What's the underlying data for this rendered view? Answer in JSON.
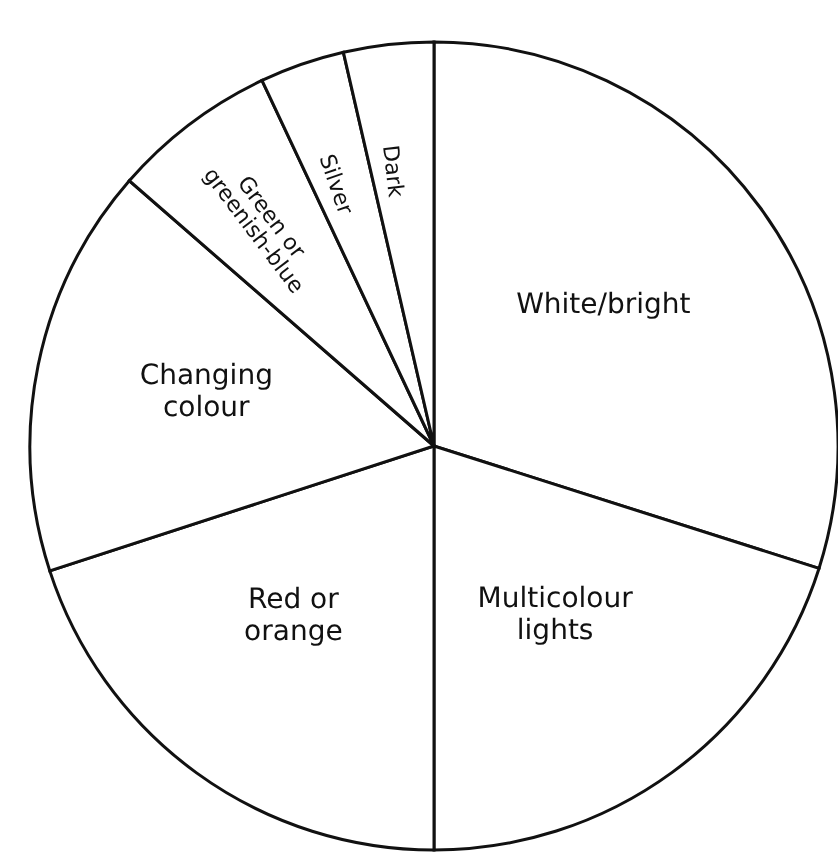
{
  "chart_data": {
    "type": "pie",
    "categories": [
      "White/bright",
      "Multicolour lights",
      "Red or orange",
      "Changing colour",
      "Green or greenish-blue",
      "Silver",
      "Dark"
    ],
    "values": [
      29.9,
      20.1,
      20.0,
      16.4,
      6.6,
      3.4,
      3.6
    ],
    "colors": [
      "#ffffff",
      "#ffffff",
      "#ffffff",
      "#ffffff",
      "#ffffff",
      "#ffffff",
      "#ffffff"
    ]
  }
}
